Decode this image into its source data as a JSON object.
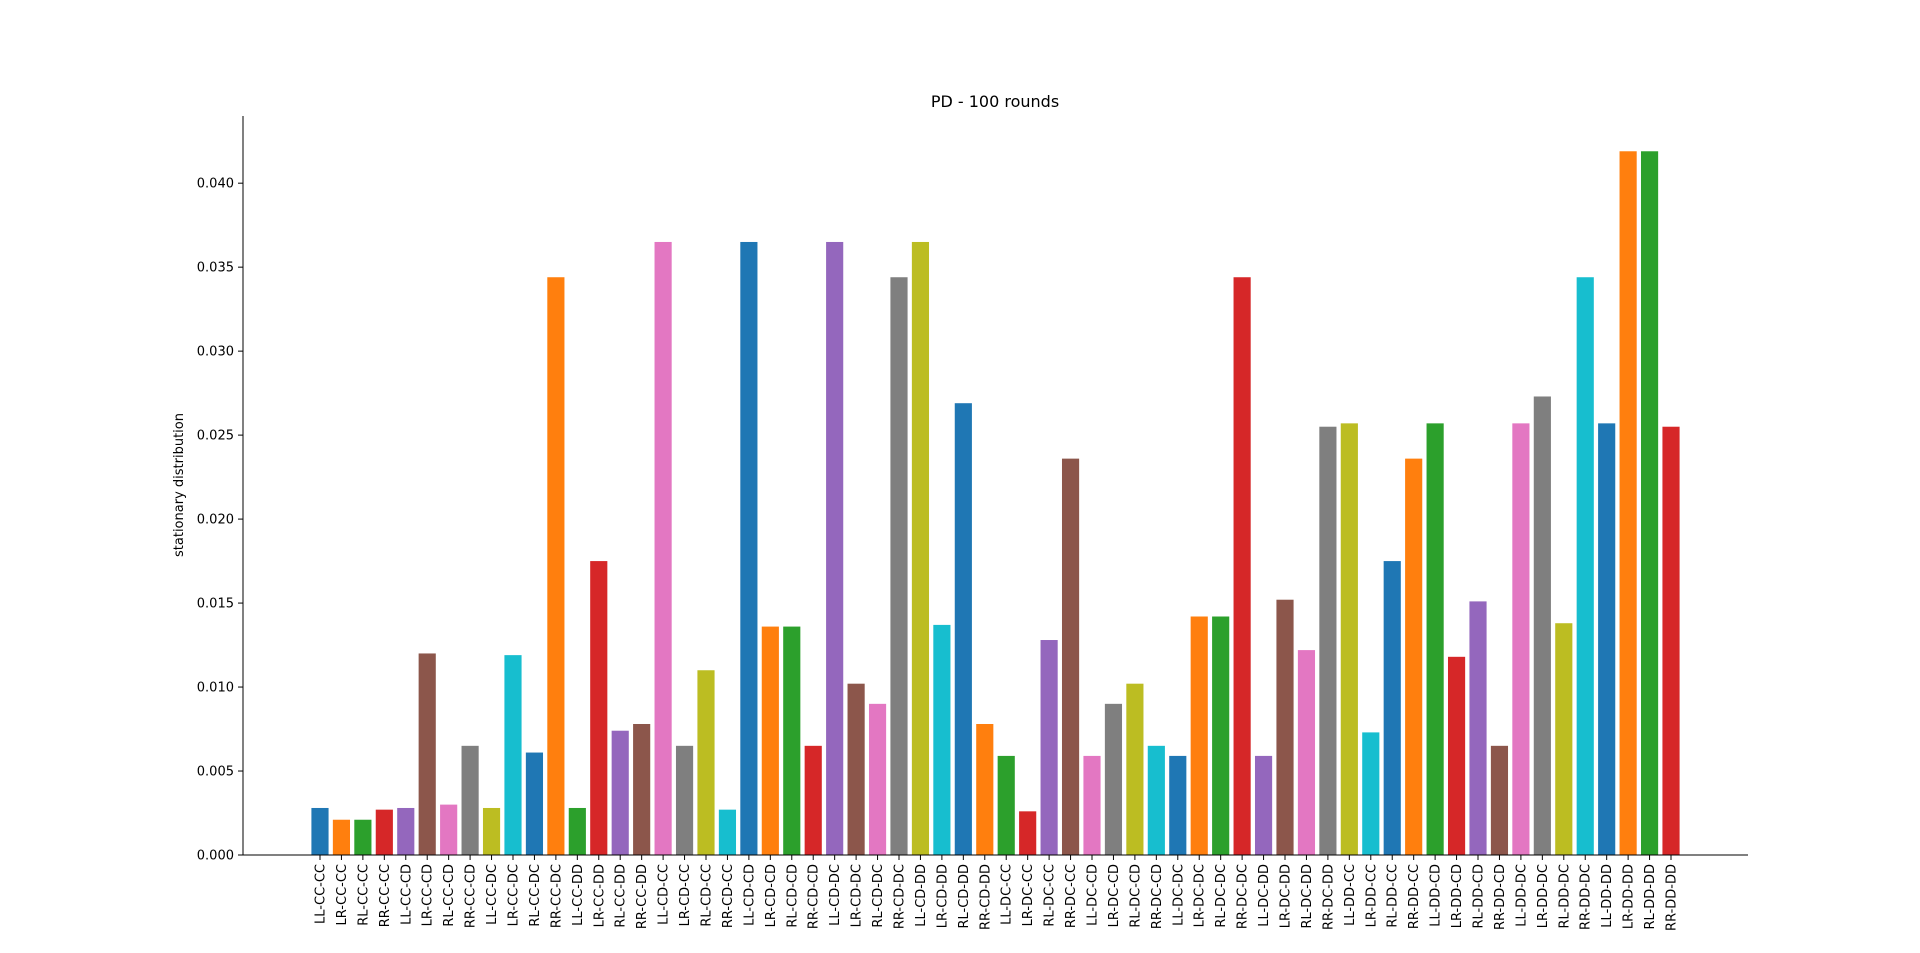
{
  "chart_data": {
    "type": "bar",
    "title": "PD - 100 rounds",
    "xlabel": "",
    "ylabel": "stationary distribution",
    "ylim": [
      0,
      0.044
    ],
    "yticks": [
      0.0,
      0.005,
      0.01,
      0.015,
      0.02,
      0.025,
      0.03,
      0.035,
      0.04
    ],
    "ytick_labels": [
      "0.000",
      "0.005",
      "0.010",
      "0.015",
      "0.020",
      "0.025",
      "0.030",
      "0.035",
      "0.040"
    ],
    "grid": false,
    "legend": "none",
    "categories": [
      "LL-CC-CC",
      "LR-CC-CC",
      "RL-CC-CC",
      "RR-CC-CC",
      "LL-CC-CD",
      "LR-CC-CD",
      "RL-CC-CD",
      "RR-CC-CD",
      "LL-CC-DC",
      "LR-CC-DC",
      "RL-CC-DC",
      "RR-CC-DC",
      "LL-CC-DD",
      "LR-CC-DD",
      "RL-CC-DD",
      "RR-CC-DD",
      "LL-CD-CC",
      "LR-CD-CC",
      "RL-CD-CC",
      "RR-CD-CC",
      "LL-CD-CD",
      "LR-CD-CD",
      "RL-CD-CD",
      "RR-CD-CD",
      "LL-CD-DC",
      "LR-CD-DC",
      "RL-CD-DC",
      "RR-CD-DC",
      "LL-CD-DD",
      "LR-CD-DD",
      "RL-CD-DD",
      "RR-CD-DD",
      "LL-DC-CC",
      "LR-DC-CC",
      "RL-DC-CC",
      "RR-DC-CC",
      "LL-DC-CD",
      "LR-DC-CD",
      "RL-DC-CD",
      "RR-DC-CD",
      "LL-DC-DC",
      "LR-DC-DC",
      "RL-DC-DC",
      "RR-DC-DC",
      "LL-DC-DD",
      "LR-DC-DD",
      "RL-DC-DD",
      "RR-DC-DD",
      "LL-DD-CC",
      "LR-DD-CC",
      "RL-DD-CC",
      "RR-DD-CC",
      "LL-DD-CD",
      "LR-DD-CD",
      "RL-DD-CD",
      "RR-DD-CD",
      "LL-DD-DC",
      "LR-DD-DC",
      "RL-DD-DC",
      "RR-DD-DC",
      "LL-DD-DD",
      "LR-DD-DD",
      "RL-DD-DD",
      "RR-DD-DD"
    ],
    "values": [
      0.0028,
      0.0021,
      0.0021,
      0.0027,
      0.0028,
      0.012,
      0.003,
      0.0065,
      0.0028,
      0.0119,
      0.0061,
      0.0344,
      0.0028,
      0.0175,
      0.0074,
      0.0078,
      0.0365,
      0.0065,
      0.011,
      0.0027,
      0.0365,
      0.0136,
      0.0136,
      0.0065,
      0.0365,
      0.0102,
      0.009,
      0.0344,
      0.0365,
      0.0137,
      0.0269,
      0.0078,
      0.0059,
      0.0026,
      0.0128,
      0.0236,
      0.0059,
      0.009,
      0.0102,
      0.0065,
      0.0059,
      0.0142,
      0.0142,
      0.0344,
      0.0059,
      0.0152,
      0.0122,
      0.0255,
      0.0257,
      0.0073,
      0.0175,
      0.0236,
      0.0257,
      0.0118,
      0.0151,
      0.0065,
      0.0257,
      0.0273,
      0.0138,
      0.0344,
      0.0257,
      0.0419,
      0.0419,
      0.0255
    ],
    "colors": [
      "#1f77b4",
      "#ff7f0e",
      "#2ca02c",
      "#d62728",
      "#9467bd",
      "#8c564b",
      "#e377c2",
      "#7f7f7f",
      "#bcbd22",
      "#17becf"
    ]
  }
}
